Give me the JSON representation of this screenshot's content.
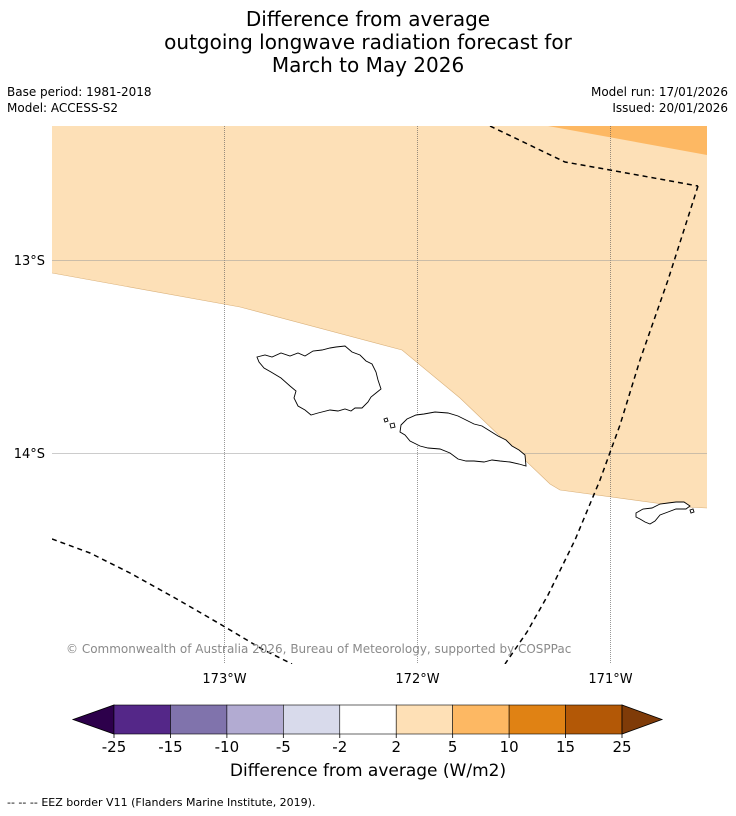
{
  "title": {
    "line1": "Difference from average",
    "line2": "outgoing longwave radiation forecast for",
    "line3": "March to May 2026"
  },
  "meta": {
    "base_period": "Base period: 1981-2018",
    "model": "Model: ACCESS-S2",
    "model_run": "Model run: 17/01/2026",
    "issued": "Issued: 20/01/2026"
  },
  "map": {
    "latitude_labels": [
      "13°S",
      "14°S"
    ],
    "longitude_labels": [
      "173°W",
      "172°W",
      "171°W"
    ],
    "copyright": "© Commonwealth of Australia 2026, Bureau of Meteorology, supported by COSPPac",
    "colors": {
      "light_orange_band": "#fde0b7",
      "orange_band": "#fdb863",
      "land_outline": "#000000",
      "eez_line": "#000000"
    }
  },
  "colorbar": {
    "label": "Difference from average (W/m2)",
    "ticks": [
      "-25",
      "-15",
      "-10",
      "-5",
      "-2",
      "2",
      "5",
      "10",
      "15",
      "25"
    ],
    "under_color": "#2d004b",
    "over_color": "#7f3b08",
    "colors": [
      "#542788",
      "#8073ac",
      "#b2abd2",
      "#d8daeb",
      "#ffffff",
      "#fee0b6",
      "#fdb863",
      "#e08214",
      "#b35806"
    ]
  },
  "legend": {
    "eez_marker": "--  --  --",
    "eez_text": "EEZ border V11 (Flanders Marine Institute, 2019)."
  }
}
